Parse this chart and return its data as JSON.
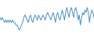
{
  "values": [
    5,
    4,
    5,
    4,
    3,
    4,
    3,
    4,
    3,
    4,
    3,
    4,
    3,
    3,
    2,
    2,
    1,
    0,
    1,
    2,
    3,
    5,
    6,
    5,
    4,
    3,
    5,
    6,
    4,
    3,
    5,
    6,
    5,
    4,
    6,
    5,
    4,
    5,
    6,
    5,
    4,
    6,
    7,
    6,
    5,
    4,
    6,
    7,
    5,
    3,
    6,
    7,
    5,
    4,
    6,
    8,
    6,
    4,
    7,
    9,
    7,
    5,
    8,
    9,
    7,
    5,
    8,
    9,
    7,
    4,
    6,
    2,
    5,
    7,
    6,
    8,
    7,
    9,
    7,
    3,
    6,
    8,
    7,
    5
  ],
  "line_color": "#4a90c4",
  "background_color": "#ffffff",
  "ylim_min": -2,
  "ylim_max": 12
}
